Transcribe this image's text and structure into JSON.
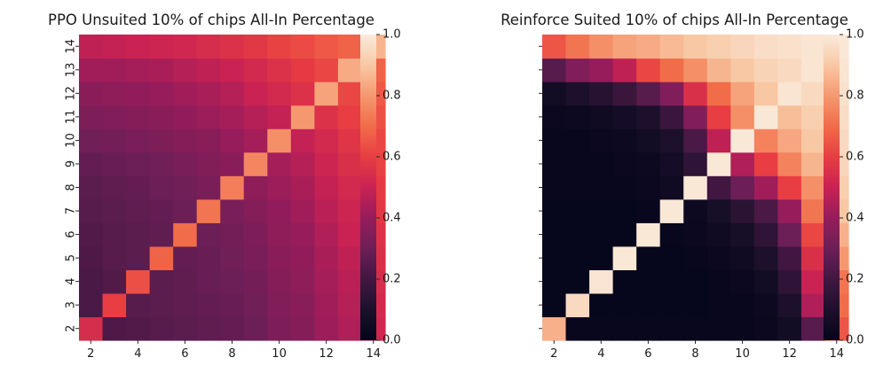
{
  "chart_data": [
    {
      "type": "heatmap",
      "title": "PPO Unsuited 10% of chips All-In Percentage",
      "x": [
        2,
        3,
        4,
        5,
        6,
        7,
        8,
        9,
        10,
        11,
        12,
        13,
        14
      ],
      "y": [
        2,
        3,
        4,
        5,
        6,
        7,
        8,
        9,
        10,
        11,
        12,
        13,
        14
      ],
      "x_tick_labels": [
        "2",
        "4",
        "6",
        "8",
        "10",
        "12",
        "14"
      ],
      "y_tick_labels": [
        "2",
        "3",
        "4",
        "5",
        "6",
        "7",
        "8",
        "9",
        "10",
        "11",
        "12",
        "13",
        "14"
      ],
      "xlabel": "",
      "ylabel": "",
      "colorbar": {
        "min": 0.0,
        "max": 1.0,
        "ticks": [
          "0.0",
          "0.2",
          "0.4",
          "0.6",
          "0.8",
          "1.0"
        ],
        "colormap": "rocket"
      },
      "values": [
        [
          0.54,
          0.23,
          0.24,
          0.25,
          0.26,
          0.27,
          0.28,
          0.3,
          0.34,
          0.36,
          0.41,
          0.45,
          0.52
        ],
        [
          0.22,
          0.6,
          0.25,
          0.26,
          0.27,
          0.28,
          0.29,
          0.31,
          0.35,
          0.37,
          0.42,
          0.46,
          0.53
        ],
        [
          0.22,
          0.24,
          0.64,
          0.26,
          0.27,
          0.29,
          0.3,
          0.32,
          0.36,
          0.38,
          0.43,
          0.47,
          0.54
        ],
        [
          0.23,
          0.25,
          0.26,
          0.68,
          0.28,
          0.29,
          0.31,
          0.33,
          0.37,
          0.39,
          0.44,
          0.48,
          0.55
        ],
        [
          0.24,
          0.25,
          0.26,
          0.27,
          0.7,
          0.3,
          0.32,
          0.34,
          0.38,
          0.4,
          0.45,
          0.5,
          0.56
        ],
        [
          0.25,
          0.26,
          0.27,
          0.28,
          0.3,
          0.72,
          0.33,
          0.36,
          0.39,
          0.42,
          0.47,
          0.51,
          0.58
        ],
        [
          0.26,
          0.27,
          0.28,
          0.3,
          0.31,
          0.33,
          0.74,
          0.38,
          0.41,
          0.44,
          0.49,
          0.53,
          0.59
        ],
        [
          0.28,
          0.29,
          0.3,
          0.31,
          0.33,
          0.35,
          0.37,
          0.76,
          0.43,
          0.46,
          0.51,
          0.55,
          0.61
        ],
        [
          0.31,
          0.32,
          0.33,
          0.34,
          0.36,
          0.37,
          0.4,
          0.43,
          0.78,
          0.49,
          0.53,
          0.57,
          0.62
        ],
        [
          0.34,
          0.35,
          0.36,
          0.37,
          0.39,
          0.41,
          0.43,
          0.46,
          0.49,
          0.8,
          0.56,
          0.6,
          0.64
        ],
        [
          0.37,
          0.38,
          0.39,
          0.4,
          0.42,
          0.44,
          0.46,
          0.5,
          0.53,
          0.56,
          0.82,
          0.62,
          0.66
        ],
        [
          0.42,
          0.42,
          0.43,
          0.44,
          0.46,
          0.48,
          0.5,
          0.53,
          0.56,
          0.59,
          0.62,
          0.84,
          0.68
        ],
        [
          0.48,
          0.49,
          0.5,
          0.51,
          0.52,
          0.54,
          0.56,
          0.58,
          0.61,
          0.63,
          0.66,
          0.68,
          0.86
        ]
      ]
    },
    {
      "type": "heatmap",
      "title": "Reinforce Suited 10% of chips All-In Percentage",
      "x": [
        2,
        3,
        4,
        5,
        6,
        7,
        8,
        9,
        10,
        11,
        12,
        13,
        14
      ],
      "y": [
        2,
        3,
        4,
        5,
        6,
        7,
        8,
        9,
        10,
        11,
        12,
        13,
        14
      ],
      "x_tick_labels": [
        "2",
        "4",
        "6",
        "8",
        "10",
        "12",
        "14"
      ],
      "y_tick_labels": [],
      "xlabel": "",
      "ylabel": "",
      "colorbar": {
        "min": 0.0,
        "max": 1.0,
        "ticks": [
          "0.0",
          "0.2",
          "0.4",
          "0.6",
          "0.8",
          "1.0"
        ],
        "colormap": "rocket"
      },
      "values": [
        [
          0.85,
          0.02,
          0.02,
          0.02,
          0.02,
          0.02,
          0.02,
          0.02,
          0.02,
          0.03,
          0.06,
          0.25,
          0.65
        ],
        [
          0.01,
          0.95,
          0.01,
          0.01,
          0.01,
          0.01,
          0.01,
          0.02,
          0.02,
          0.04,
          0.1,
          0.45,
          0.7
        ],
        [
          0.01,
          0.01,
          0.98,
          0.01,
          0.01,
          0.01,
          0.01,
          0.02,
          0.03,
          0.06,
          0.15,
          0.5,
          0.72
        ],
        [
          0.01,
          0.01,
          0.01,
          0.99,
          0.01,
          0.01,
          0.02,
          0.03,
          0.05,
          0.1,
          0.2,
          0.55,
          0.8
        ],
        [
          0.01,
          0.01,
          0.01,
          0.01,
          0.99,
          0.02,
          0.03,
          0.05,
          0.08,
          0.15,
          0.3,
          0.62,
          0.85
        ],
        [
          0.01,
          0.01,
          0.01,
          0.01,
          0.02,
          0.99,
          0.04,
          0.08,
          0.14,
          0.22,
          0.4,
          0.72,
          0.9
        ],
        [
          0.02,
          0.02,
          0.02,
          0.02,
          0.03,
          0.05,
          0.99,
          0.2,
          0.3,
          0.42,
          0.6,
          0.78,
          0.92
        ],
        [
          0.02,
          0.02,
          0.02,
          0.03,
          0.04,
          0.07,
          0.15,
          0.99,
          0.45,
          0.6,
          0.75,
          0.86,
          0.94
        ],
        [
          0.02,
          0.02,
          0.03,
          0.04,
          0.06,
          0.1,
          0.22,
          0.48,
          0.99,
          0.75,
          0.83,
          0.9,
          0.95
        ],
        [
          0.03,
          0.04,
          0.05,
          0.07,
          0.1,
          0.18,
          0.35,
          0.6,
          0.78,
          0.99,
          0.88,
          0.92,
          0.96
        ],
        [
          0.06,
          0.1,
          0.13,
          0.18,
          0.25,
          0.35,
          0.55,
          0.7,
          0.82,
          0.9,
          0.98,
          0.95,
          0.97
        ],
        [
          0.25,
          0.35,
          0.4,
          0.48,
          0.62,
          0.7,
          0.78,
          0.86,
          0.9,
          0.93,
          0.95,
          0.98,
          0.98
        ],
        [
          0.65,
          0.72,
          0.78,
          0.82,
          0.84,
          0.87,
          0.9,
          0.92,
          0.94,
          0.96,
          0.97,
          0.98,
          0.99
        ]
      ]
    }
  ]
}
